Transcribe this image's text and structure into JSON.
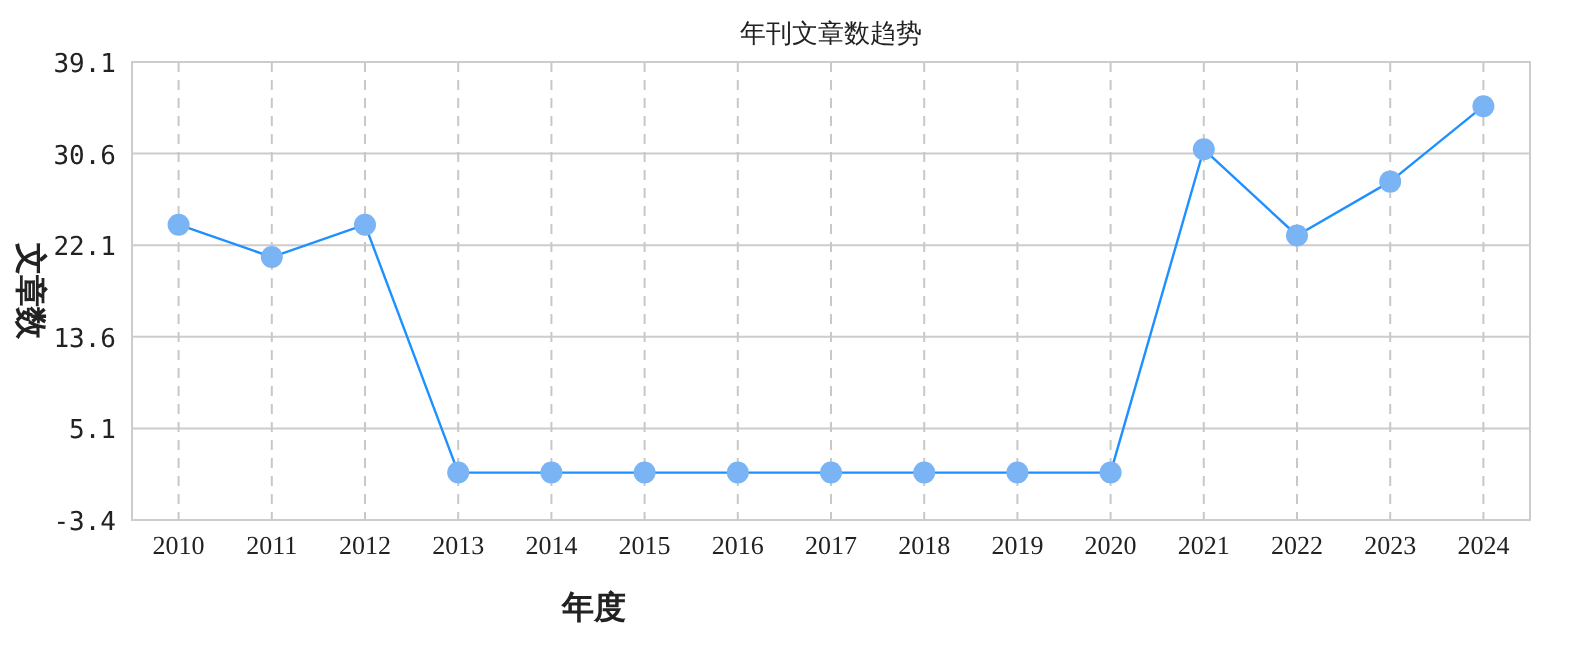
{
  "chart_data": {
    "type": "line",
    "title": "年刊文章数趋势",
    "xlabel": "年度",
    "ylabel": "文章数",
    "categories": [
      "2010",
      "2011",
      "2012",
      "2013",
      "2014",
      "2015",
      "2016",
      "2017",
      "2018",
      "2019",
      "2020",
      "2021",
      "2022",
      "2023",
      "2024"
    ],
    "series": [
      {
        "color": "#1e90ff",
        "values": [
          24,
          21,
          24,
          1,
          1,
          1,
          1,
          1,
          1,
          1,
          1,
          31,
          23,
          28,
          35
        ]
      }
    ],
    "ylim": [
      -3.4,
      39.1
    ],
    "yticks": [
      -3.4,
      5.1,
      13.6,
      22.1,
      30.6,
      39.1
    ],
    "grid": true,
    "marker": "circle",
    "line_style": "solid"
  }
}
